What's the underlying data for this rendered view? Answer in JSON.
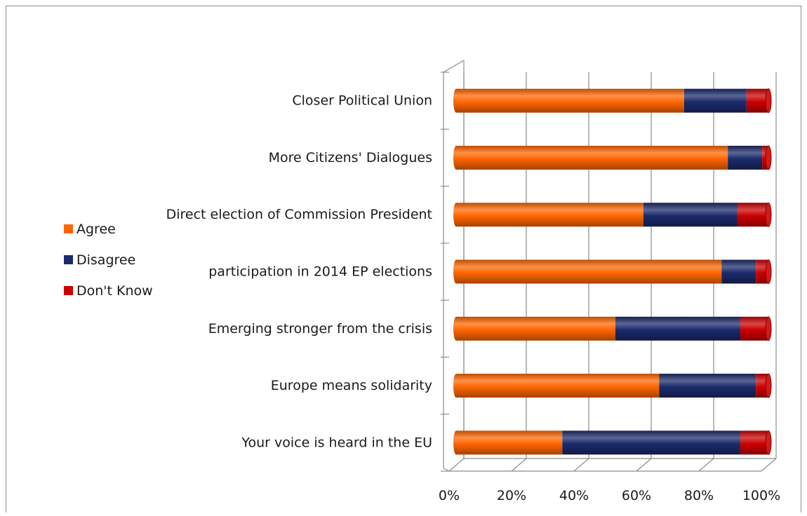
{
  "chart_data": {
    "type": "bar",
    "orientation": "horizontal",
    "stacked": "percent",
    "style": "3d-cylinder",
    "title": "",
    "xlabel": "",
    "ylabel": "",
    "xlim": [
      0,
      100
    ],
    "grid": true,
    "legend_position": "left",
    "x_ticks": [
      "0%",
      "20%",
      "40%",
      "60%",
      "80%",
      "100%"
    ],
    "categories": [
      "Closer Political Union",
      "More Citizens' Dialogues",
      "Direct election of Commission President",
      "participation in 2014 EP elections",
      "Emerging stronger from the crisis",
      "Europe means solidarity",
      "Your voice is heard in the EU"
    ],
    "series": [
      {
        "name": "Agree",
        "color": "#ff6600",
        "values": [
          73,
          87,
          60,
          85,
          51,
          65,
          34
        ]
      },
      {
        "name": "Disagree",
        "color": "#1b2a6b",
        "values": [
          20,
          11,
          30,
          11,
          40,
          31,
          57
        ]
      },
      {
        "name": "Don't Know",
        "color": "#cc0000",
        "values": [
          7,
          2,
          10,
          4,
          9,
          4,
          9
        ]
      }
    ]
  }
}
